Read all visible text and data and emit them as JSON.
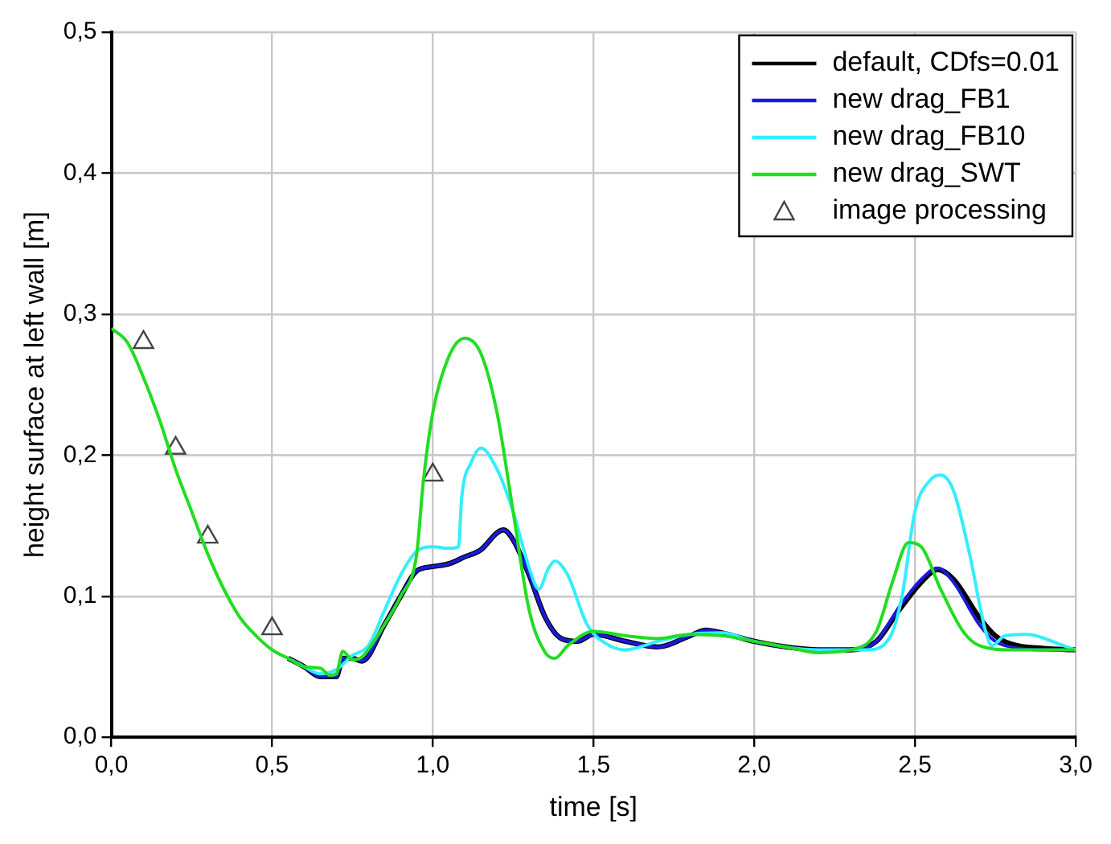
{
  "chart_data": {
    "type": "line",
    "xlabel": "time [s]",
    "ylabel": "height surface at left wall [m]",
    "xlim": [
      0,
      3
    ],
    "ylim": [
      0,
      0.5
    ],
    "xticks": [
      {
        "value": 0,
        "label": "0,0"
      },
      {
        "value": 0.5,
        "label": "0,5"
      },
      {
        "value": 1,
        "label": "1,0"
      },
      {
        "value": 1.5,
        "label": "1,5"
      },
      {
        "value": 2,
        "label": "2,0"
      },
      {
        "value": 2.5,
        "label": "2,5"
      },
      {
        "value": 3,
        "label": "3,0"
      }
    ],
    "yticks": [
      {
        "value": 0,
        "label": "0,0"
      },
      {
        "value": 0.1,
        "label": "0,1"
      },
      {
        "value": 0.2,
        "label": "0,2"
      },
      {
        "value": 0.3,
        "label": "0,3"
      },
      {
        "value": 0.4,
        "label": "0,4"
      },
      {
        "value": 0.5,
        "label": "0,5"
      }
    ],
    "grid": true,
    "legend": "top right",
    "line_style": "solid",
    "series": [
      {
        "name": "default, CDfs=0.01",
        "color": "#000000",
        "x": [
          0.55,
          0.6,
          0.65,
          0.7,
          0.72,
          0.75,
          0.78,
          0.85,
          0.9,
          0.95,
          1.0,
          1.05,
          1.1,
          1.15,
          1.2,
          1.22,
          1.25,
          1.3,
          1.35,
          1.4,
          1.45,
          1.5,
          1.6,
          1.7,
          1.8,
          1.85,
          1.9,
          2.0,
          2.1,
          2.2,
          2.3,
          2.38,
          2.45,
          2.52,
          2.57,
          2.62,
          2.7,
          2.75,
          2.8,
          2.9,
          3.0
        ],
        "values": [
          0.056,
          0.05,
          0.043,
          0.043,
          0.056,
          0.056,
          0.054,
          0.08,
          0.1,
          0.118,
          0.121,
          0.123,
          0.128,
          0.133,
          0.145,
          0.147,
          0.14,
          0.115,
          0.085,
          0.07,
          0.068,
          0.073,
          0.068,
          0.064,
          0.072,
          0.076,
          0.074,
          0.068,
          0.064,
          0.062,
          0.062,
          0.068,
          0.09,
          0.11,
          0.119,
          0.112,
          0.085,
          0.072,
          0.066,
          0.063,
          0.062
        ]
      },
      {
        "name": "new drag_FB1",
        "color": "#1a1adc",
        "x": [
          0.55,
          0.6,
          0.65,
          0.7,
          0.72,
          0.75,
          0.78,
          0.85,
          0.9,
          0.95,
          1.0,
          1.05,
          1.1,
          1.15,
          1.2,
          1.22,
          1.25,
          1.3,
          1.35,
          1.4,
          1.45,
          1.5,
          1.6,
          1.7,
          1.8,
          1.85,
          1.9,
          2.0,
          2.1,
          2.2,
          2.3,
          2.38,
          2.45,
          2.52,
          2.57,
          2.62,
          2.7,
          2.75,
          2.8,
          2.9,
          3.0
        ],
        "values": [
          0.056,
          0.05,
          0.043,
          0.043,
          0.056,
          0.056,
          0.054,
          0.08,
          0.1,
          0.118,
          0.121,
          0.123,
          0.128,
          0.133,
          0.145,
          0.147,
          0.14,
          0.115,
          0.085,
          0.07,
          0.068,
          0.073,
          0.068,
          0.064,
          0.072,
          0.076,
          0.074,
          0.068,
          0.064,
          0.062,
          0.062,
          0.068,
          0.092,
          0.112,
          0.12,
          0.11,
          0.08,
          0.068,
          0.064,
          0.062,
          0.062
        ]
      },
      {
        "name": "new drag_FB10",
        "color": "#33eeff",
        "x": [
          0.55,
          0.6,
          0.65,
          0.7,
          0.75,
          0.8,
          0.85,
          0.9,
          0.95,
          1.0,
          1.05,
          1.08,
          1.09,
          1.12,
          1.15,
          1.2,
          1.25,
          1.3,
          1.33,
          1.36,
          1.38,
          1.42,
          1.48,
          1.55,
          1.6,
          1.7,
          1.8,
          1.9,
          2.0,
          2.2,
          2.35,
          2.42,
          2.46,
          2.5,
          2.55,
          2.58,
          2.62,
          2.67,
          2.72,
          2.74,
          2.78,
          2.85,
          2.95,
          3.0
        ],
        "values": [
          0.056,
          0.05,
          0.045,
          0.048,
          0.058,
          0.065,
          0.09,
          0.115,
          0.132,
          0.135,
          0.134,
          0.135,
          0.17,
          0.195,
          0.205,
          0.19,
          0.16,
          0.12,
          0.105,
          0.12,
          0.125,
          0.115,
          0.08,
          0.065,
          0.062,
          0.068,
          0.073,
          0.074,
          0.068,
          0.062,
          0.062,
          0.07,
          0.1,
          0.16,
          0.183,
          0.186,
          0.175,
          0.13,
          0.075,
          0.065,
          0.072,
          0.073,
          0.066,
          0.062
        ]
      },
      {
        "name": "new drag_SWT",
        "color": "#22dd22",
        "x": [
          0,
          0.05,
          0.1,
          0.15,
          0.2,
          0.25,
          0.3,
          0.35,
          0.4,
          0.45,
          0.5,
          0.55,
          0.6,
          0.65,
          0.68,
          0.7,
          0.72,
          0.75,
          0.78,
          0.85,
          0.9,
          0.95,
          0.97,
          1.0,
          1.05,
          1.1,
          1.15,
          1.2,
          1.25,
          1.3,
          1.35,
          1.38,
          1.42,
          1.5,
          1.6,
          1.7,
          1.8,
          1.9,
          2.0,
          2.1,
          2.2,
          2.3,
          2.38,
          2.43,
          2.48,
          2.52,
          2.58,
          2.65,
          2.7,
          2.8,
          3.0
        ],
        "values": [
          0.29,
          0.28,
          0.255,
          0.225,
          0.19,
          0.16,
          0.13,
          0.105,
          0.085,
          0.072,
          0.062,
          0.056,
          0.05,
          0.049,
          0.044,
          0.045,
          0.061,
          0.055,
          0.057,
          0.08,
          0.1,
          0.13,
          0.18,
          0.23,
          0.27,
          0.283,
          0.272,
          0.23,
          0.16,
          0.09,
          0.06,
          0.056,
          0.065,
          0.075,
          0.072,
          0.07,
          0.073,
          0.072,
          0.068,
          0.064,
          0.06,
          0.062,
          0.075,
          0.11,
          0.138,
          0.135,
          0.105,
          0.075,
          0.065,
          0.062,
          0.062
        ]
      },
      {
        "name": "image processing",
        "type": "scatter",
        "color": "#444444",
        "marker": "triangle",
        "x": [
          0.1,
          0.2,
          0.3,
          0.5,
          1.0
        ],
        "values": [
          0.28,
          0.205,
          0.142,
          0.077,
          0.186
        ]
      }
    ]
  }
}
